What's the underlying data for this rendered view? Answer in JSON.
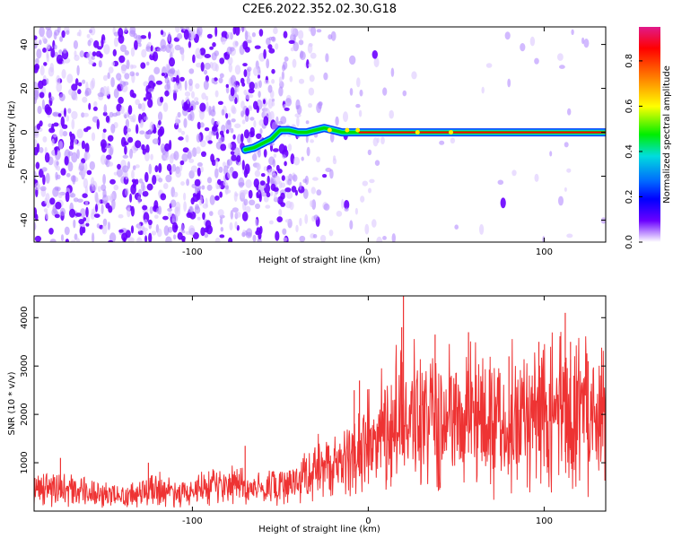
{
  "figure": {
    "title": "C2E6.2022.352.02.30.G18"
  },
  "chart_data": [
    {
      "type": "heatmap",
      "title": "",
      "xlabel": "Height of straight line (km)",
      "ylabel": "Frequency (Hz)",
      "xlim": [
        -190,
        135
      ],
      "ylim": [
        -50,
        48
      ],
      "xticks": [
        -100,
        0,
        100
      ],
      "yticks": [
        -40,
        -20,
        0,
        20,
        40
      ],
      "colorbar": {
        "label": "Normalized spectral amplitude",
        "range": [
          0.0,
          0.95
        ],
        "ticks": [
          0.0,
          0.2,
          0.4,
          0.6,
          0.8
        ],
        "colormap": [
          "#e01a8a",
          "#ff0000",
          "#ff8c00",
          "#ffff00",
          "#00ee00",
          "#00dddd",
          "#0066ff",
          "#0000ff",
          "#6a00ff",
          "#ffffff"
        ]
      },
      "ridge": [
        {
          "x": -70,
          "y": -8
        },
        {
          "x": -65,
          "y": -7
        },
        {
          "x": -60,
          "y": -5
        },
        {
          "x": -55,
          "y": -3
        },
        {
          "x": -50,
          "y": 1
        },
        {
          "x": -45,
          "y": 1
        },
        {
          "x": -40,
          "y": 0
        },
        {
          "x": -35,
          "y": 0
        },
        {
          "x": -30,
          "y": 1
        },
        {
          "x": -25,
          "y": 2
        },
        {
          "x": -20,
          "y": 1
        },
        {
          "x": -15,
          "y": 0
        },
        {
          "x": -10,
          "y": 0
        },
        {
          "x": -5,
          "y": 0
        },
        {
          "x": 0,
          "y": 0
        },
        {
          "x": 10,
          "y": 0
        },
        {
          "x": 20,
          "y": 0
        },
        {
          "x": 40,
          "y": 0
        },
        {
          "x": 60,
          "y": 0
        },
        {
          "x": 80,
          "y": 0
        },
        {
          "x": 100,
          "y": 0
        },
        {
          "x": 120,
          "y": 0
        },
        {
          "x": 135,
          "y": 0
        }
      ],
      "colors": {
        "noise": "#6a00ff",
        "ridge_core": "#ff0000"
      }
    },
    {
      "type": "line",
      "title": "",
      "xlabel": "Height of straight line (km)",
      "ylabel": "SNR (10 * v/v)",
      "xlim": [
        -190,
        135
      ],
      "ylim": [
        0,
        4450
      ],
      "xticks": [
        -100,
        0,
        100
      ],
      "yticks": [
        1000,
        2000,
        3000,
        4000
      ],
      "series": [
        {
          "color": "#ee3333",
          "x": [
            -190,
            -180,
            -170,
            -160,
            -150,
            -140,
            -130,
            -120,
            -110,
            -100,
            -90,
            -80,
            -75,
            -70,
            -65,
            -60,
            -55,
            -50,
            -45,
            -40,
            -35,
            -30,
            -25,
            -20,
            -15,
            -10,
            -5,
            0,
            5,
            10,
            15,
            18,
            20,
            22,
            25,
            30,
            35,
            40,
            45,
            50,
            55,
            60,
            65,
            70,
            75,
            80,
            85,
            90,
            95,
            100,
            105,
            110,
            115,
            120,
            125,
            130,
            135
          ],
          "values": [
            420,
            480,
            440,
            380,
            360,
            320,
            380,
            450,
            420,
            450,
            470,
            520,
            620,
            480,
            420,
            460,
            500,
            520,
            560,
            660,
            780,
            900,
            860,
            950,
            1000,
            1100,
            1200,
            1400,
            1500,
            1650,
            1750,
            2600,
            2000,
            1900,
            1900,
            1950,
            1900,
            1950,
            2000,
            1850,
            2000,
            2050,
            1900,
            1950,
            2050,
            2000,
            1950,
            2000,
            2100,
            2050,
            2000,
            2000,
            2100,
            2000,
            2100,
            2050,
            2100
          ]
        }
      ],
      "peaks": [
        {
          "x": 20,
          "y": 4450
        },
        {
          "x": 19,
          "y": 3800
        },
        {
          "x": 38,
          "y": 3650
        },
        {
          "x": 57,
          "y": 3700
        },
        {
          "x": 80,
          "y": 3200
        },
        {
          "x": 97,
          "y": 3500
        },
        {
          "x": 112,
          "y": 4100
        },
        {
          "x": 115,
          "y": 3500
        },
        {
          "x": -5,
          "y": 2700
        },
        {
          "x": -8,
          "y": 2500
        },
        {
          "x": 125,
          "y": 3100
        },
        {
          "x": -70,
          "y": 1350
        },
        {
          "x": -175,
          "y": 1100
        },
        {
          "x": -125,
          "y": 1000
        }
      ]
    }
  ]
}
